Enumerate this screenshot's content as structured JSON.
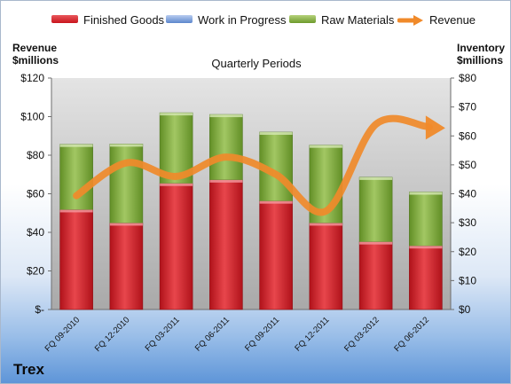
{
  "legend": {
    "finished_goods": "Finished Goods",
    "work_in_progress": "Work in Progress",
    "raw_materials": "Raw Materials",
    "revenue": "Revenue"
  },
  "left_axis_title": [
    "Revenue",
    "$millions"
  ],
  "right_axis_title": [
    "Inventory",
    "$millions"
  ],
  "company": "Trex",
  "colors": {
    "finished_goods": "#c8141c",
    "work_in_progress": "#5c86cc",
    "raw_materials": "#6d9a2c",
    "revenue": "#f08a2a",
    "plot_background": "#c4c4c4"
  },
  "chart_data": {
    "type": "bar",
    "stacked": true,
    "title": "Quarterly Periods",
    "categories": [
      "FQ 09-2010",
      "FQ 12-2010",
      "FQ 03-2011",
      "FQ 06-2011",
      "FQ 09-2011",
      "FQ 12-2011",
      "FQ 03-2012",
      "FQ 06-2012"
    ],
    "series": [
      {
        "name": "Finished Goods",
        "axis": "right",
        "values": [
          34.5,
          29.9,
          43.6,
          44.8,
          37.5,
          29.9,
          23.4,
          22.0
        ]
      },
      {
        "name": "Work in Progress",
        "axis": "right",
        "values": [
          0,
          0,
          0,
          0,
          0,
          0,
          0,
          0
        ]
      },
      {
        "name": "Raw Materials",
        "axis": "right",
        "values": [
          22.6,
          27.3,
          24.4,
          22.6,
          23.8,
          26.9,
          22.3,
          18.6
        ]
      },
      {
        "name": "Revenue",
        "axis": "left",
        "type": "line",
        "values": [
          59,
          76,
          69,
          79,
          70,
          51,
          96,
          95
        ]
      }
    ],
    "left_axis": {
      "ylim": [
        0,
        120
      ],
      "ticks": [
        "$-",
        "$20",
        "$40",
        "$60",
        "$80",
        "$100",
        "$120"
      ]
    },
    "right_axis": {
      "ylim": [
        0,
        80
      ],
      "ticks": [
        "$0",
        "$10",
        "$20",
        "$30",
        "$40",
        "$50",
        "$60",
        "$70",
        "$80"
      ]
    },
    "legend_position": "top",
    "grid": false
  }
}
